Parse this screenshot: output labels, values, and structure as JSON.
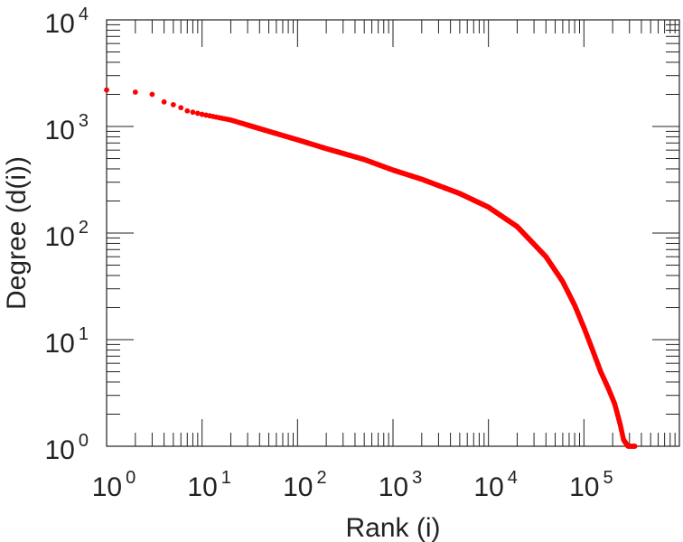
{
  "chart_data": {
    "type": "scatter",
    "title": "",
    "xlabel": "Rank (i)",
    "ylabel": "Degree (d(i))",
    "xscale": "log",
    "yscale": "log",
    "xlim": [
      1,
      1000000
    ],
    "ylim": [
      1,
      10000
    ],
    "grid": false,
    "legend": "none",
    "marker_color": "#ff0000",
    "x_ticks": [
      {
        "value": 1,
        "base": "10",
        "exp": "0"
      },
      {
        "value": 10,
        "base": "10",
        "exp": "1"
      },
      {
        "value": 100,
        "base": "10",
        "exp": "2"
      },
      {
        "value": 1000,
        "base": "10",
        "exp": "3"
      },
      {
        "value": 10000,
        "base": "10",
        "exp": "4"
      },
      {
        "value": 100000,
        "base": "10",
        "exp": "5"
      }
    ],
    "y_ticks": [
      {
        "value": 1,
        "base": "10",
        "exp": "0"
      },
      {
        "value": 10,
        "base": "10",
        "exp": "1"
      },
      {
        "value": 100,
        "base": "10",
        "exp": "2"
      },
      {
        "value": 1000,
        "base": "10",
        "exp": "3"
      },
      {
        "value": 10000,
        "base": "10",
        "exp": "4"
      }
    ],
    "curve": {
      "x": [
        1,
        2,
        3,
        4,
        5,
        6,
        7,
        10,
        20,
        50,
        100,
        200,
        500,
        1000,
        2000,
        5000,
        10000,
        20000,
        40000,
        60000,
        80000,
        100000,
        120000,
        150000,
        180000,
        210000,
        240000,
        260000,
        290000,
        320000,
        350000
      ],
      "y": [
        2200,
        2100,
        2000,
        1700,
        1600,
        1500,
        1400,
        1300,
        1150,
        900,
        750,
        620,
        490,
        390,
        320,
        235,
        175,
        115,
        60,
        35,
        21,
        13,
        8.5,
        5,
        3.5,
        2.5,
        1.6,
        1.15,
        1,
        1,
        1
      ]
    }
  }
}
